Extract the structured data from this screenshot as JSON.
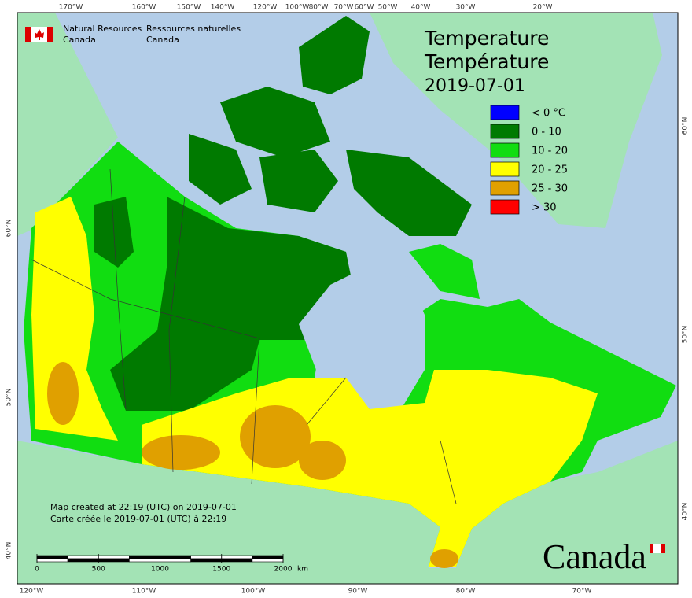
{
  "header": {
    "agency_en": [
      "Natural Resources",
      "Canada"
    ],
    "agency_fr": [
      "Ressources naturelles",
      "Canada"
    ]
  },
  "title": [
    "Temperature",
    "Température",
    "2019-07-01"
  ],
  "legend": [
    {
      "label": "< 0 °C",
      "color": "#0000ff"
    },
    {
      "label": "0 - 10",
      "color": "#007a00"
    },
    {
      "label": "10 - 20",
      "color": "#11dd11"
    },
    {
      "label": "20 - 25",
      "color": "#ffff00"
    },
    {
      "label": "25 - 30",
      "color": "#e0a000"
    },
    {
      "label": "> 30",
      "color": "#ff0000"
    }
  ],
  "footnote": [
    "Map created at 22:19 (UTC) on 2019-07-01",
    "Carte créée le 2019-07-01 (UTC) à 22:19"
  ],
  "scale": {
    "ticks": [
      0,
      500,
      1000,
      1500,
      2000
    ],
    "unit": "km"
  },
  "wordmark": "Canada",
  "graticule": {
    "top": [
      "170°W",
      "160°W",
      "150°W",
      "140°W",
      "120°W",
      "100°W",
      "80°W",
      "70°W",
      "60°W",
      "50°W",
      "40°W",
      "30°W",
      "20°W"
    ],
    "bottom": [
      "120°W",
      "110°W",
      "100°W",
      "90°W",
      "80°W",
      "70°W"
    ],
    "left": [
      "60°N",
      "50°N",
      "40°N"
    ],
    "right": [
      "60°N",
      "50°N",
      "40°N"
    ]
  }
}
